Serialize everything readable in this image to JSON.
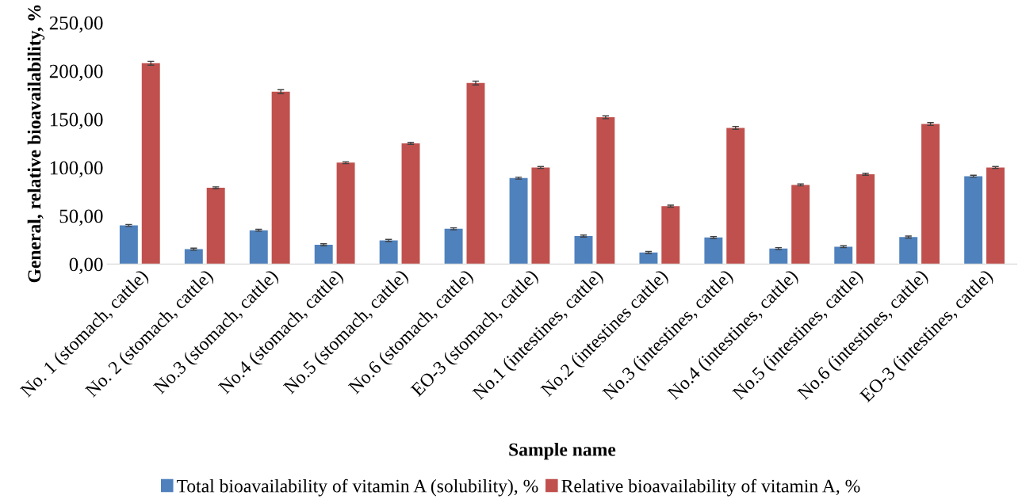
{
  "chart_data": {
    "type": "bar",
    "xlabel": "Sample name",
    "ylabel": "General, relative bioavailability, %",
    "categories": [
      "No. 1 (stomach, cattle)",
      "No. 2 (stomach, cattle)",
      "No.3 (stomach, cattle)",
      "No.4 (stomach, cattle)",
      "No.5 (stomach, cattle)",
      "No.6 (stomach, cattle)",
      "EO-3 (stomach, cattle)",
      "No.1 (intestines, cattle)",
      "No.2 (intestines cattle)",
      "No.3 (intestines, cattle)",
      "No.4 (intestines, cattle)",
      "No.5 (intestines, cattle)",
      "No.6 (intestines, cattle)",
      "EO-3 (intestines, cattle)"
    ],
    "series": [
      {
        "name": "Total bioavailability of vitamin A (solubility), %",
        "color": "#4f81bd",
        "values": [
          40,
          15.5,
          35,
          20,
          24.5,
          36.5,
          89,
          29,
          12,
          27.5,
          16,
          18,
          28,
          91
        ],
        "errors": [
          1,
          1,
          1,
          1,
          1,
          1,
          1,
          1,
          1,
          1,
          1,
          1,
          1,
          1
        ]
      },
      {
        "name": "Relative bioavailability of vitamin A, %",
        "color": "#c0504d",
        "values": [
          208,
          79,
          178.5,
          105,
          125,
          187.5,
          100,
          152,
          60,
          141,
          82,
          93,
          145,
          100
        ],
        "errors": [
          2,
          1,
          2,
          1,
          1,
          2,
          1,
          1.5,
          1,
          1.5,
          1,
          1,
          1.5,
          1
        ]
      }
    ],
    "ylim": [
      0,
      250
    ],
    "yticks": [
      {
        "value": 0,
        "label": "0,00"
      },
      {
        "value": 50,
        "label": "50,00"
      },
      {
        "value": 100,
        "label": "100,00"
      },
      {
        "value": 150,
        "label": "150,00"
      },
      {
        "value": 200,
        "label": "200,00"
      },
      {
        "value": 250,
        "label": "250,00"
      }
    ],
    "grid": false,
    "legend": "bottom"
  }
}
